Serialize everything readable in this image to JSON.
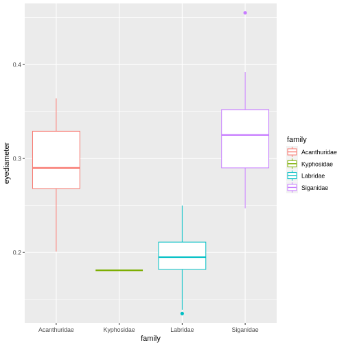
{
  "chart_data": {
    "type": "box",
    "xlabel": "family",
    "ylabel": "eyediameter",
    "categories": [
      "Acanthuridae",
      "Kyphosidae",
      "Labridae",
      "Siganidae"
    ],
    "ylim": [
      0.125,
      0.465
    ],
    "yticks": [
      0.2,
      0.3,
      0.4
    ],
    "ytick_labels": [
      "0.2",
      "0.3",
      "0.4"
    ],
    "legend": {
      "title": "family",
      "placement": "right",
      "entries": [
        "Acanthuridae",
        "Kyphosidae",
        "Labridae",
        "Siganidae"
      ]
    },
    "colors": {
      "Acanthuridae": "#F8766D",
      "Kyphosidae": "#7CAE00",
      "Labridae": "#00BFC4",
      "Siganidae": "#C77CFF",
      "panel_background": "#EBEBEB",
      "grid_major": "#FFFFFF"
    },
    "grid": true,
    "boxes": [
      {
        "category": "Acanthuridae",
        "lower_whisker": 0.201,
        "q1": 0.268,
        "median": 0.29,
        "q3": 0.329,
        "upper_whisker": 0.364,
        "outliers": []
      },
      {
        "category": "Kyphosidae",
        "lower_whisker": 0.181,
        "q1": 0.181,
        "median": 0.181,
        "q3": 0.181,
        "upper_whisker": 0.181,
        "outliers": []
      },
      {
        "category": "Labridae",
        "lower_whisker": 0.139,
        "q1": 0.182,
        "median": 0.195,
        "q3": 0.211,
        "upper_whisker": 0.25,
        "outliers": [
          0.135
        ]
      },
      {
        "category": "Siganidae",
        "lower_whisker": 0.247,
        "q1": 0.29,
        "median": 0.325,
        "q3": 0.352,
        "upper_whisker": 0.392,
        "outliers": [
          0.455
        ]
      }
    ]
  }
}
